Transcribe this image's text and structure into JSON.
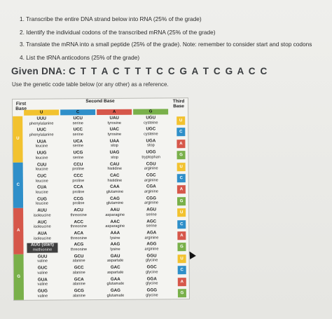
{
  "instructions": [
    "1. Transcribe the entire DNA strand below into RNA (25% of the grade)",
    "2. Identify the individual codons of the transcribed mRNA (25% of the grade)",
    "3. Translate the mRNA into a small peptide (25% of the grade). Note: remember to consider start and stop codons",
    "4. List the tRNA anticodons (25% of the grade)"
  ],
  "given": {
    "label": "Given DNA:",
    "sequence": "C T T A C T T T C C G A T C G A C C"
  },
  "use_text": "Use the genetic code table below (or any other) as a reference.",
  "table": {
    "first_base_label": "First Base",
    "second_base_label": "Second Base",
    "third_base_label": "Third Base",
    "second_bases": [
      "U",
      "C",
      "A",
      "G"
    ],
    "colors": {
      "U": "#f2c22f",
      "C": "#2f8fc9",
      "A": "#d6574a",
      "G": "#79b04a"
    },
    "groups": [
      {
        "base": "U",
        "thirds": [
          "U",
          "C",
          "A",
          "G"
        ],
        "cells": [
          [
            {
              "c": "UUU",
              "a": "phenylalanine"
            },
            {
              "c": "UCU",
              "a": "serine"
            },
            {
              "c": "UAU",
              "a": "tyrosine"
            },
            {
              "c": "UGU",
              "a": "cysteine"
            }
          ],
          [
            {
              "c": "UUC",
              "a": "phenylalanine"
            },
            {
              "c": "UCC",
              "a": "serine"
            },
            {
              "c": "UAC",
              "a": "tyrosine"
            },
            {
              "c": "UGC",
              "a": "cysteine"
            }
          ],
          [
            {
              "c": "UUA",
              "a": "leucine"
            },
            {
              "c": "UCA",
              "a": "serine"
            },
            {
              "c": "UAA",
              "a": "stop"
            },
            {
              "c": "UGA",
              "a": "stop"
            }
          ],
          [
            {
              "c": "UUG",
              "a": "leucine"
            },
            {
              "c": "UCG",
              "a": "serine"
            },
            {
              "c": "UAG",
              "a": "stop"
            },
            {
              "c": "UGG",
              "a": "tryptophan"
            }
          ]
        ]
      },
      {
        "base": "C",
        "thirds": [
          "U",
          "C",
          "A",
          "G"
        ],
        "cells": [
          [
            {
              "c": "CUU",
              "a": "leucine"
            },
            {
              "c": "CCU",
              "a": "proline"
            },
            {
              "c": "CAU",
              "a": "histidine"
            },
            {
              "c": "CGU",
              "a": "arginine"
            }
          ],
          [
            {
              "c": "CUC",
              "a": "leucine"
            },
            {
              "c": "CCC",
              "a": "proline"
            },
            {
              "c": "CAC",
              "a": "histidine"
            },
            {
              "c": "CGC",
              "a": "arginine"
            }
          ],
          [
            {
              "c": "CUA",
              "a": "leucine"
            },
            {
              "c": "CCA",
              "a": "proline"
            },
            {
              "c": "CAA",
              "a": "glutamine"
            },
            {
              "c": "CGA",
              "a": "arginine"
            }
          ],
          [
            {
              "c": "CUG",
              "a": "leucine"
            },
            {
              "c": "CCG",
              "a": "proline"
            },
            {
              "c": "CAG",
              "a": "glutamine"
            },
            {
              "c": "CGG",
              "a": "arginine"
            }
          ]
        ]
      },
      {
        "base": "A",
        "thirds": [
          "U",
          "C",
          "A",
          "G"
        ],
        "cells": [
          [
            {
              "c": "AUU",
              "a": "isoleucine"
            },
            {
              "c": "ACU",
              "a": "threonine"
            },
            {
              "c": "AAU",
              "a": "asparagine"
            },
            {
              "c": "AGU",
              "a": "serine"
            }
          ],
          [
            {
              "c": "AUC",
              "a": "isoleucine"
            },
            {
              "c": "ACC",
              "a": "threonine"
            },
            {
              "c": "AAC",
              "a": "asparagine"
            },
            {
              "c": "AGC",
              "a": "serine"
            }
          ],
          [
            {
              "c": "AUA",
              "a": "isoleucine"
            },
            {
              "c": "ACA",
              "a": "threonine"
            },
            {
              "c": "AAA",
              "a": "lysine"
            },
            {
              "c": "AGA",
              "a": "arginine"
            }
          ],
          [
            {
              "c": "AUG (start)",
              "a": "methionine"
            },
            {
              "c": "ACG",
              "a": "threonine"
            },
            {
              "c": "AAG",
              "a": "lysine"
            },
            {
              "c": "AGG",
              "a": "arginine"
            }
          ]
        ]
      },
      {
        "base": "G",
        "thirds": [
          "U",
          "C",
          "A",
          "G"
        ],
        "cells": [
          [
            {
              "c": "GUU",
              "a": "valine"
            },
            {
              "c": "GCU",
              "a": "alanine"
            },
            {
              "c": "GAU",
              "a": "aspartate"
            },
            {
              "c": "GGU",
              "a": "glycine"
            }
          ],
          [
            {
              "c": "GUC",
              "a": "valine"
            },
            {
              "c": "GCC",
              "a": "alanine"
            },
            {
              "c": "GAC",
              "a": "aspartate"
            },
            {
              "c": "GGC",
              "a": "glycine"
            }
          ],
          [
            {
              "c": "GUA",
              "a": "valine"
            },
            {
              "c": "GCA",
              "a": "alanine"
            },
            {
              "c": "GAA",
              "a": "glutamate"
            },
            {
              "c": "GGA",
              "a": "glycine"
            }
          ],
          [
            {
              "c": "GUG",
              "a": "valine"
            },
            {
              "c": "GCG",
              "a": "alanine"
            },
            {
              "c": "GAG",
              "a": "glutamate"
            },
            {
              "c": "GGG",
              "a": "glycine"
            }
          ]
        ]
      }
    ]
  }
}
